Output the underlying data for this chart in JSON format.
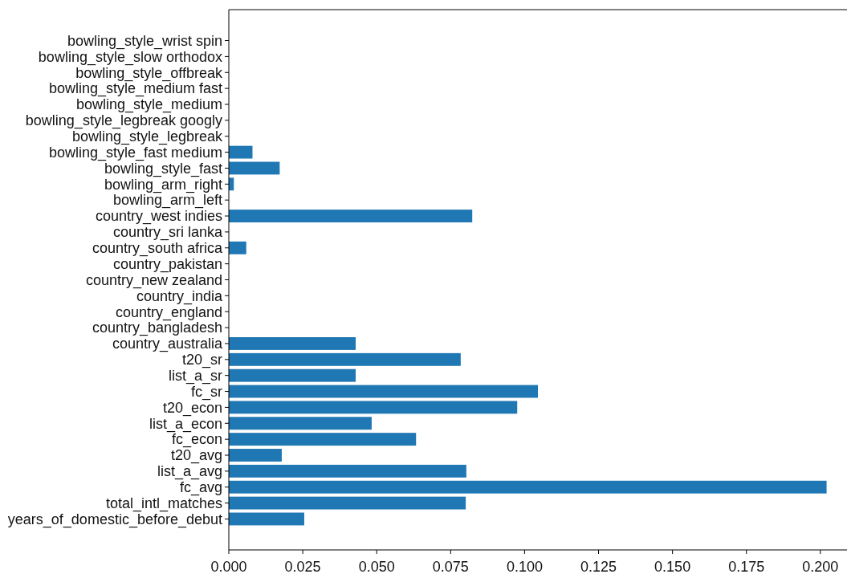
{
  "chart_data": {
    "type": "bar",
    "orientation": "horizontal",
    "categories": [
      "bowling_style_wrist spin",
      "bowling_style_slow orthodox",
      "bowling_style_offbreak",
      "bowling_style_medium fast",
      "bowling_style_medium",
      "bowling_style_legbreak googly",
      "bowling_style_legbreak",
      "bowling_style_fast medium",
      "bowling_style_fast",
      "bowling_arm_right",
      "bowling_arm_left",
      "country_west indies",
      "country_sri lanka",
      "country_south africa",
      "country_pakistan",
      "country_new zealand",
      "country_india",
      "country_england",
      "country_bangladesh",
      "country_australia",
      "t20_sr",
      "list_a_sr",
      "fc_sr",
      "t20_econ",
      "list_a_econ",
      "fc_econ",
      "t20_avg",
      "list_a_avg",
      "fc_avg",
      "total_intl_matches",
      "years_of_domestic_before_debut"
    ],
    "values": [
      0,
      0,
      0,
      0,
      0,
      0,
      0,
      0.008,
      0.0172,
      0.0017,
      0,
      0.0823,
      0,
      0.0059,
      0,
      0,
      0,
      0,
      0,
      0.0429,
      0.0784,
      0.0429,
      0.1045,
      0.0975,
      0.0483,
      0.0633,
      0.0179,
      0.0803,
      0.2021,
      0.0801,
      0.0255
    ],
    "color": "#1f77b4",
    "xlim": [
      0,
      0.209
    ],
    "xticks": [
      {
        "value": 0,
        "label": "0.000"
      },
      {
        "value": 0.025,
        "label": "0.025"
      },
      {
        "value": 0.05,
        "label": "0.050"
      },
      {
        "value": 0.075,
        "label": "0.075"
      },
      {
        "value": 0.1,
        "label": "0.100"
      },
      {
        "value": 0.125,
        "label": "0.125"
      },
      {
        "value": 0.15,
        "label": "0.150"
      },
      {
        "value": 0.175,
        "label": "0.175"
      },
      {
        "value": 0.2,
        "label": "0.200"
      }
    ]
  }
}
